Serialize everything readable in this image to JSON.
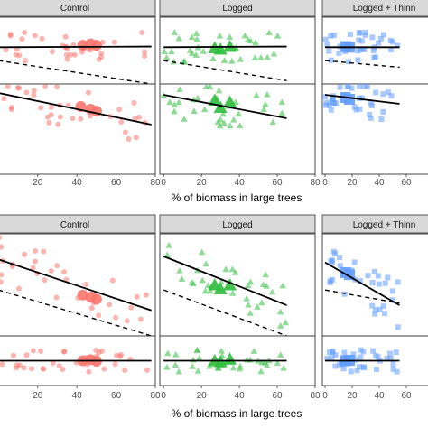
{
  "chart_data": {
    "type": "scatter",
    "xlabel": "% of biomass in large trees",
    "x_ticks": [
      0,
      20,
      40,
      60,
      80
    ],
    "xlim": [
      -2,
      80
    ],
    "colors": {
      "Control": "#F8766D",
      "Logged": "#2FBE3C",
      "Logged + Thinned": "#619CFF"
    },
    "markers": {
      "Control": "circle",
      "Logged": "triangle",
      "Logged + Thinned": "square"
    },
    "figures": [
      {
        "facets": [
          "Control",
          "Logged",
          "Logged + Thinn"
        ],
        "rows": [
          {
            "ylim": [
              0,
              1
            ],
            "solid_lines": [
              {
                "panel": "Control",
                "x": [
                  0,
                  78
                ],
                "y": [
                  0.55,
                  0.56
                ]
              },
              {
                "panel": "Logged",
                "x": [
                  0,
                  65
                ],
                "y": [
                  0.55,
                  0.56
                ]
              },
              {
                "panel": "Logged + Thinned",
                "x": [
                  0,
                  55
                ],
                "y": [
                  0.55,
                  0.55
                ]
              }
            ],
            "dashed_lines": [
              {
                "panel": "Control",
                "x": [
                  0,
                  78
                ],
                "y": [
                  0.35,
                  0.0
                ]
              },
              {
                "panel": "Logged",
                "x": [
                  0,
                  65
                ],
                "y": [
                  0.35,
                  0.05
                ]
              },
              {
                "panel": "Logged + Thinned",
                "x": [
                  0,
                  55
                ],
                "y": [
                  0.35,
                  0.25
                ]
              }
            ],
            "means": [
              {
                "panel": "Control",
                "points": [
                  [
                    43,
                    0.58
                  ],
                  [
                    47,
                    0.6
                  ],
                  [
                    50,
                    0.58
                  ]
                ]
              },
              {
                "panel": "Logged",
                "points": [
                  [
                    27,
                    0.54
                  ],
                  [
                    35,
                    0.56
                  ],
                  [
                    30,
                    0.52
                  ]
                ]
              },
              {
                "panel": "Logged + Thinned",
                "points": [
                  [
                    15,
                    0.56
                  ],
                  [
                    18,
                    0.55
                  ]
                ]
              }
            ]
          },
          {
            "ylim": [
              0,
              1
            ],
            "solid_lines": [
              {
                "panel": "Control",
                "x": [
                  0,
                  78
                ],
                "y": [
                  0.9,
                  0.55
                ]
              },
              {
                "panel": "Logged",
                "x": [
                  0,
                  65
                ],
                "y": [
                  0.88,
                  0.62
                ]
              },
              {
                "panel": "Logged + Thinned",
                "x": [
                  0,
                  55
                ],
                "y": [
                  0.88,
                  0.78
                ]
              }
            ],
            "dashed_lines": [],
            "means": [
              {
                "panel": "Control",
                "points": [
                  [
                    42,
                    0.75
                  ],
                  [
                    47,
                    0.72
                  ],
                  [
                    50,
                    0.7
                  ]
                ]
              },
              {
                "panel": "Logged",
                "points": [
                  [
                    27,
                    0.82
                  ],
                  [
                    35,
                    0.8
                  ],
                  [
                    30,
                    0.74
                  ]
                ]
              },
              {
                "panel": "Logged + Thinned",
                "points": [
                  [
                    15,
                    0.85
                  ],
                  [
                    18,
                    0.83
                  ]
                ]
              }
            ]
          }
        ]
      },
      {
        "facets": [
          "Control",
          "Logged",
          "Logged + Thinn"
        ],
        "rows": [
          {
            "ylim": [
              0,
              1
            ],
            "solid_lines": [
              {
                "panel": "Control",
                "x": [
                  0,
                  78
                ],
                "y": [
                  0.75,
                  0.25
                ]
              },
              {
                "panel": "Logged",
                "x": [
                  0,
                  65
                ],
                "y": [
                  0.78,
                  0.3
                ]
              },
              {
                "panel": "Logged + Thinned",
                "x": [
                  0,
                  55
                ],
                "y": [
                  0.72,
                  0.3
                ]
              }
            ],
            "dashed_lines": [
              {
                "panel": "Control",
                "x": [
                  0,
                  78
                ],
                "y": [
                  0.45,
                  0.0
                ]
              },
              {
                "panel": "Logged",
                "x": [
                  0,
                  65
                ],
                "y": [
                  0.45,
                  0.0
                ]
              },
              {
                "panel": "Logged + Thinned",
                "x": [
                  0,
                  55
                ],
                "y": [
                  0.45,
                  0.32
                ]
              }
            ],
            "means": [
              {
                "panel": "Control",
                "points": [
                  [
                    43,
                    0.4
                  ],
                  [
                    47,
                    0.38
                  ],
                  [
                    50,
                    0.36
                  ]
                ]
              },
              {
                "panel": "Logged",
                "points": [
                  [
                    27,
                    0.5
                  ],
                  [
                    35,
                    0.5
                  ],
                  [
                    30,
                    0.46
                  ]
                ]
              },
              {
                "panel": "Logged + Thinned",
                "points": [
                  [
                    15,
                    0.62
                  ],
                  [
                    18,
                    0.6
                  ]
                ]
              }
            ]
          },
          {
            "ylim": [
              0,
              1
            ],
            "solid_lines": [
              {
                "panel": "Control",
                "x": [
                  0,
                  78
                ],
                "y": [
                  0.5,
                  0.5
                ]
              },
              {
                "panel": "Logged",
                "x": [
                  0,
                  65
                ],
                "y": [
                  0.5,
                  0.5
                ]
              },
              {
                "panel": "Logged + Thinned",
                "x": [
                  0,
                  55
                ],
                "y": [
                  0.5,
                  0.5
                ]
              }
            ],
            "dashed_lines": [],
            "means": [
              {
                "panel": "Control",
                "points": [
                  [
                    43,
                    0.5
                  ],
                  [
                    47,
                    0.52
                  ],
                  [
                    50,
                    0.49
                  ]
                ]
              },
              {
                "panel": "Logged",
                "points": [
                  [
                    27,
                    0.5
                  ],
                  [
                    35,
                    0.53
                  ],
                  [
                    30,
                    0.48
                  ]
                ]
              },
              {
                "panel": "Logged + Thinned",
                "points": [
                  [
                    15,
                    0.5
                  ],
                  [
                    18,
                    0.51
                  ]
                ]
              }
            ]
          }
        ]
      }
    ]
  }
}
